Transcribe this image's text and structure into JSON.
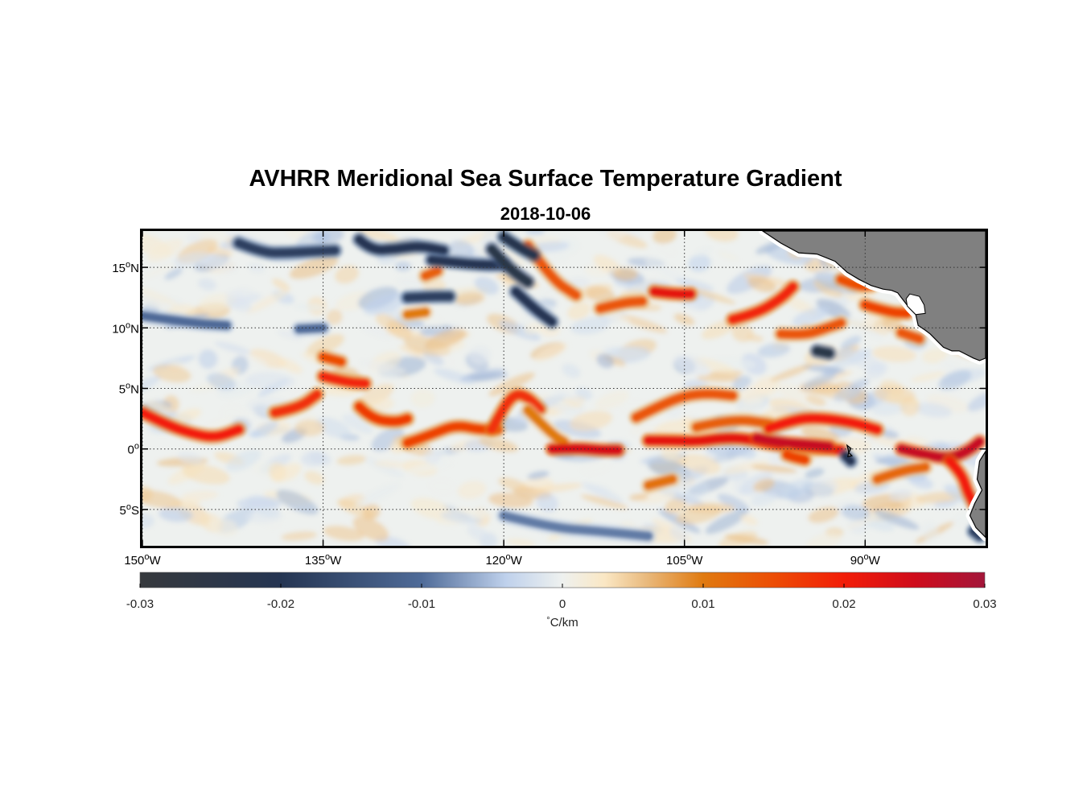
{
  "title": "AVHRR Meridional Sea Surface Temperature Gradient",
  "subtitle": "2018-10-06",
  "map": {
    "projection": "equirectangular",
    "lon_range": [
      -150,
      -80
    ],
    "lat_range": [
      -8,
      18
    ],
    "grid": "dotted",
    "land_color": "#808080",
    "lat_ticks": [
      {
        "value": 15,
        "deg": "15",
        "hemi": "N"
      },
      {
        "value": 10,
        "deg": "10",
        "hemi": "N"
      },
      {
        "value": 5,
        "deg": "5",
        "hemi": "N"
      },
      {
        "value": 0,
        "deg": "0",
        "hemi": ""
      },
      {
        "value": -5,
        "deg": "5",
        "hemi": "S"
      }
    ],
    "lon_ticks": [
      {
        "value": -150,
        "deg": "150",
        "hemi": "W"
      },
      {
        "value": -135,
        "deg": "135",
        "hemi": "W"
      },
      {
        "value": -120,
        "deg": "120",
        "hemi": "W"
      },
      {
        "value": -105,
        "deg": "105",
        "hemi": "W"
      },
      {
        "value": -90,
        "deg": "90",
        "hemi": "W"
      }
    ],
    "features": [
      {
        "sign": 1,
        "mag": 0.02,
        "pts": [
          [
            -150,
            3
          ],
          [
            -148,
            2
          ],
          [
            -146,
            1.3
          ],
          [
            -144,
            0.9
          ],
          [
            -142,
            1.6
          ]
        ]
      },
      {
        "sign": 1,
        "mag": 0.018,
        "pts": [
          [
            -139,
            3
          ],
          [
            -137,
            3.4
          ],
          [
            -135.5,
            4.5
          ]
        ]
      },
      {
        "sign": 1,
        "mag": 0.019,
        "pts": [
          [
            -135,
            6
          ],
          [
            -133,
            5.5
          ],
          [
            -131.5,
            5.4
          ]
        ]
      },
      {
        "sign": 1,
        "mag": 0.015,
        "pts": [
          [
            -135,
            7.6
          ],
          [
            -133.5,
            7.2
          ]
        ]
      },
      {
        "sign": 1,
        "mag": 0.017,
        "pts": [
          [
            -132,
            3.5
          ],
          [
            -131,
            2.5
          ],
          [
            -129,
            2.2
          ],
          [
            -128,
            2.5
          ]
        ]
      },
      {
        "sign": 1,
        "mag": 0.016,
        "pts": [
          [
            -128,
            0.5
          ],
          [
            -126,
            1.2
          ],
          [
            -124,
            2
          ],
          [
            -122,
            1.6
          ],
          [
            -120.5,
            1.6
          ]
        ]
      },
      {
        "sign": 1,
        "mag": 0.018,
        "pts": [
          [
            -121,
            1.6
          ],
          [
            -120,
            3.5
          ],
          [
            -119,
            4.6
          ],
          [
            -118,
            4.3
          ],
          [
            -117,
            3.3
          ]
        ]
      },
      {
        "sign": 1,
        "mag": 0.01,
        "pts": [
          [
            -118,
            3.2
          ],
          [
            -116,
            1.2
          ],
          [
            -115,
            0.6
          ]
        ]
      },
      {
        "sign": 1,
        "mag": 0.024,
        "pts": [
          [
            -116,
            0
          ],
          [
            -114,
            0.1
          ],
          [
            -112,
            -0.1
          ],
          [
            -110.5,
            -0.1
          ]
        ]
      },
      {
        "sign": 1,
        "mag": 0.022,
        "pts": [
          [
            -108,
            0.7
          ],
          [
            -106,
            0.7
          ],
          [
            -104,
            0.6
          ],
          [
            -102,
            0.9
          ],
          [
            -100,
            0.9
          ],
          [
            -98,
            0.4
          ],
          [
            -96,
            0.2
          ],
          [
            -94,
            0.1
          ],
          [
            -92,
            -0.1
          ]
        ]
      },
      {
        "sign": 1,
        "mag": 0.026,
        "pts": [
          [
            -99,
            0.9
          ],
          [
            -97,
            0.5
          ],
          [
            -95,
            0.4
          ],
          [
            -93,
            0.2
          ]
        ]
      },
      {
        "sign": 1,
        "mag": 0.014,
        "pts": [
          [
            -109,
            2.6
          ],
          [
            -107,
            3.6
          ],
          [
            -105,
            4.4
          ],
          [
            -103,
            4.6
          ],
          [
            -101,
            4.4
          ]
        ]
      },
      {
        "sign": 1,
        "mag": 0.016,
        "pts": [
          [
            -96.5,
            -0.5
          ],
          [
            -96,
            -0.7
          ],
          [
            -95,
            -0.9
          ]
        ]
      },
      {
        "sign": 1,
        "mag": 0.013,
        "pts": [
          [
            -104,
            1.8
          ],
          [
            -101,
            2.5
          ],
          [
            -98,
            2.1
          ]
        ]
      },
      {
        "sign": 1,
        "mag": 0.02,
        "pts": [
          [
            -98,
            1.7
          ],
          [
            -96,
            2.4
          ],
          [
            -94,
            2.6
          ],
          [
            -91,
            2.2
          ],
          [
            -89,
            1.6
          ]
        ]
      },
      {
        "sign": 1,
        "mag": 0.026,
        "pts": [
          [
            -87,
            0
          ],
          [
            -85,
            -0.5
          ],
          [
            -83,
            -0.8
          ],
          [
            -81.5,
            -0.2
          ],
          [
            -80.5,
            0.6
          ]
        ]
      },
      {
        "sign": 1,
        "mag": 0.02,
        "pts": [
          [
            -83,
            -1
          ],
          [
            -82,
            -2
          ],
          [
            -81.5,
            -3.5
          ],
          [
            -81,
            -4.5
          ]
        ]
      },
      {
        "sign": 1,
        "mag": 0.012,
        "pts": [
          [
            -89,
            -2.5
          ],
          [
            -87,
            -1.8
          ],
          [
            -85,
            -1.5
          ]
        ]
      },
      {
        "sign": 1,
        "mag": 0.022,
        "pts": [
          [
            -107.5,
            13
          ],
          [
            -106,
            12.8
          ],
          [
            -104.5,
            12.8
          ]
        ]
      },
      {
        "sign": 1,
        "mag": 0.014,
        "pts": [
          [
            -112,
            11.6
          ],
          [
            -110,
            12.1
          ],
          [
            -108.5,
            12.2
          ]
        ]
      },
      {
        "sign": 1,
        "mag": 0.019,
        "pts": [
          [
            -101,
            10.7
          ],
          [
            -99,
            11.2
          ],
          [
            -97,
            12.4
          ],
          [
            -96,
            13.4
          ]
        ]
      },
      {
        "sign": 1,
        "mag": 0.014,
        "pts": [
          [
            -97,
            9.5
          ],
          [
            -95,
            9.4
          ],
          [
            -93.5,
            9.9
          ],
          [
            -92,
            10.4
          ]
        ]
      },
      {
        "sign": 1,
        "mag": 0.016,
        "pts": [
          [
            -90,
            11.9
          ],
          [
            -88,
            11.3
          ],
          [
            -86.5,
            11.2
          ]
        ]
      },
      {
        "sign": 1,
        "mag": 0.014,
        "pts": [
          [
            -87,
            9.6
          ],
          [
            -85.5,
            9.1
          ]
        ]
      },
      {
        "sign": 1,
        "mag": 0.015,
        "pts": [
          [
            -92,
            14
          ],
          [
            -90.5,
            13.4
          ],
          [
            -89.5,
            13.5
          ]
        ]
      },
      {
        "sign": 1,
        "mag": 0.014,
        "pts": [
          [
            -118,
            16.8
          ],
          [
            -116,
            14
          ],
          [
            -114,
            12.7
          ]
        ]
      },
      {
        "sign": 1,
        "mag": 0.013,
        "pts": [
          [
            -126.5,
            14.3
          ],
          [
            -125.5,
            14.7
          ]
        ]
      },
      {
        "sign": 1,
        "mag": 0.01,
        "pts": [
          [
            -128,
            11.1
          ],
          [
            -126.5,
            11.3
          ]
        ]
      },
      {
        "sign": 1,
        "mag": 0.011,
        "pts": [
          [
            -108,
            -3
          ],
          [
            -106,
            -2.5
          ]
        ]
      },
      {
        "sign": -1,
        "mag": 0.018,
        "pts": [
          [
            -142,
            17
          ],
          [
            -140,
            16.2
          ],
          [
            -138,
            16.2
          ],
          [
            -136,
            16.3
          ],
          [
            -134,
            16.4
          ]
        ]
      },
      {
        "sign": -1,
        "mag": 0.02,
        "pts": [
          [
            -132,
            17.3
          ],
          [
            -131,
            16.4
          ],
          [
            -129,
            16.5
          ],
          [
            -127,
            16.8
          ],
          [
            -125,
            16.4
          ]
        ]
      },
      {
        "sign": -1,
        "mag": 0.02,
        "pts": [
          [
            -126,
            15.6
          ],
          [
            -124,
            15.4
          ],
          [
            -122,
            15.2
          ],
          [
            -120,
            15.2
          ]
        ]
      },
      {
        "sign": -1,
        "mag": 0.024,
        "pts": [
          [
            -121,
            16.5
          ],
          [
            -120,
            15.4
          ],
          [
            -119,
            14.5
          ],
          [
            -118,
            13.8
          ]
        ]
      },
      {
        "sign": -1,
        "mag": 0.022,
        "pts": [
          [
            -120,
            17.5
          ],
          [
            -118.5,
            16.5
          ],
          [
            -117.5,
            16
          ]
        ]
      },
      {
        "sign": -1,
        "mag": 0.02,
        "pts": [
          [
            -119,
            13
          ],
          [
            -117.5,
            11.6
          ],
          [
            -116,
            10.5
          ]
        ]
      },
      {
        "sign": -1,
        "mag": 0.018,
        "pts": [
          [
            -128,
            12.5
          ],
          [
            -126,
            12.6
          ],
          [
            -124.5,
            12.6
          ]
        ]
      },
      {
        "sign": -1,
        "mag": 0.024,
        "pts": [
          [
            -94,
            8.1
          ],
          [
            -93,
            7.9
          ]
        ]
      },
      {
        "sign": -1,
        "mag": 0.02,
        "pts": [
          [
            -91.6,
            -0.6
          ],
          [
            -91.2,
            -1
          ]
        ]
      },
      {
        "sign": -1,
        "mag": 0.009,
        "pts": [
          [
            -120,
            -5.5
          ],
          [
            -116,
            -6.5
          ],
          [
            -112,
            -6.8
          ],
          [
            -108,
            -7.2
          ]
        ]
      },
      {
        "sign": -1,
        "mag": 0.01,
        "pts": [
          [
            -150,
            11
          ],
          [
            -146,
            10.4
          ],
          [
            -143,
            10.2
          ]
        ]
      },
      {
        "sign": -1,
        "mag": 0.01,
        "pts": [
          [
            -137,
            9.9
          ],
          [
            -135,
            10
          ]
        ]
      },
      {
        "sign": -1,
        "mag": 0.018,
        "pts": [
          [
            -81,
            -6.8
          ],
          [
            -80.5,
            -7.2
          ]
        ]
      }
    ],
    "land": [
      [
        [
          -98.5,
          18
        ],
        [
          -97,
          17
        ],
        [
          -95.5,
          16.2
        ],
        [
          -94,
          16.1
        ],
        [
          -92.5,
          15.5
        ],
        [
          -91.5,
          14.6
        ],
        [
          -90.5,
          14
        ],
        [
          -89.5,
          13.5
        ],
        [
          -88.5,
          13.2
        ],
        [
          -87.8,
          13.1
        ],
        [
          -87.3,
          12.9
        ],
        [
          -87,
          12.5
        ],
        [
          -86.3,
          11.6
        ],
        [
          -85.8,
          11.1
        ],
        [
          -85.6,
          10.2
        ],
        [
          -85,
          9.8
        ],
        [
          -84.6,
          9.5
        ],
        [
          -84,
          8.9
        ],
        [
          -83.5,
          8.4
        ],
        [
          -82.8,
          8.1
        ],
        [
          -82.2,
          8.1
        ],
        [
          -81.6,
          7.8
        ],
        [
          -81,
          7.5
        ],
        [
          -80.5,
          7.3
        ],
        [
          -80,
          7.5
        ],
        [
          -80,
          18
        ]
      ],
      [
        [
          -80,
          -0.2
        ],
        [
          -80.5,
          -1
        ],
        [
          -80.7,
          -2.5
        ],
        [
          -80.3,
          -3.4
        ],
        [
          -80.9,
          -4.5
        ],
        [
          -81.3,
          -5.5
        ],
        [
          -80.8,
          -6.5
        ],
        [
          -80,
          -7.3
        ],
        [
          -80,
          -0.2
        ]
      ]
    ],
    "lakes": [
      [
        [
          -86.3,
          12.8
        ],
        [
          -85.5,
          12.6
        ],
        [
          -85.1,
          11.9
        ],
        [
          -85,
          11.2
        ],
        [
          -85.8,
          11.1
        ],
        [
          -86.5,
          11.8
        ],
        [
          -86.6,
          12.4
        ]
      ]
    ]
  },
  "colorbar": {
    "min": -0.03,
    "max": 0.03,
    "ticks": [
      "-0.03",
      "-0.02",
      "-0.01",
      "0",
      "0.01",
      "0.02",
      "0.03"
    ],
    "tick_values": [
      -0.03,
      -0.02,
      -0.01,
      0,
      0.01,
      0.02,
      0.03
    ],
    "unit_deg": "°",
    "unit_text": "C/km",
    "stops": [
      {
        "v": -0.03,
        "c": "#36393d"
      },
      {
        "v": -0.02,
        "c": "#253552"
      },
      {
        "v": -0.01,
        "c": "#4f6b98"
      },
      {
        "v": -0.004,
        "c": "#bfd1ec"
      },
      {
        "v": 0,
        "c": "#eef1ef"
      },
      {
        "v": 0.003,
        "c": "#fae7c4"
      },
      {
        "v": 0.006,
        "c": "#e9b97c"
      },
      {
        "v": 0.01,
        "c": "#e07a10"
      },
      {
        "v": 0.015,
        "c": "#ec4d05"
      },
      {
        "v": 0.02,
        "c": "#f21d08"
      },
      {
        "v": 0.025,
        "c": "#cf0c1b"
      },
      {
        "v": 0.03,
        "c": "#a3163a"
      }
    ]
  }
}
